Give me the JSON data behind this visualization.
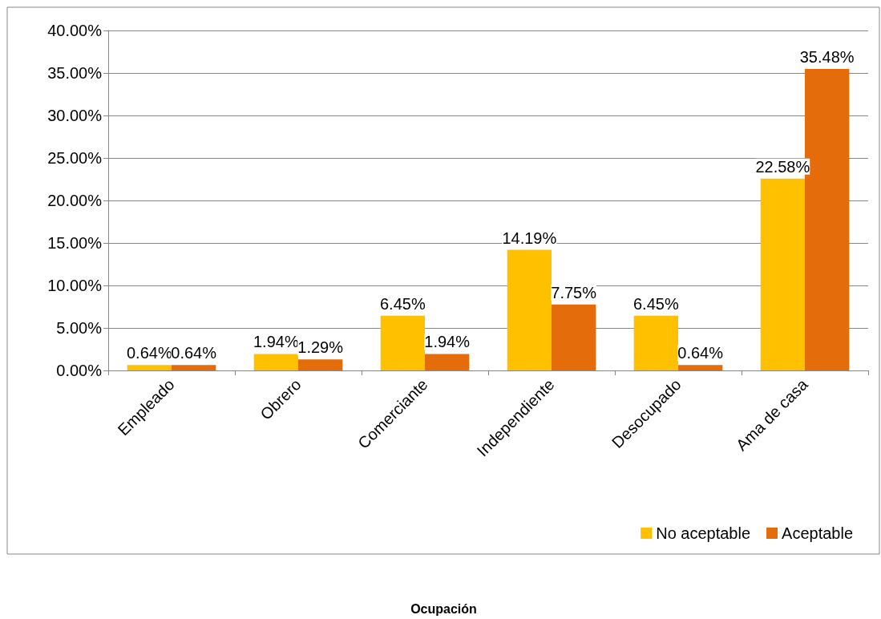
{
  "chart_data": {
    "type": "bar",
    "annotations": [
      "Ocupación"
    ],
    "categories": [
      "Empleado",
      "Obrero",
      "Comerciante",
      "Independiente",
      "Desocupado",
      "Ama de casa"
    ],
    "series": [
      {
        "name": "No aceptable",
        "color": "#ffc000",
        "values": [
          0.64,
          1.94,
          6.45,
          14.19,
          6.45,
          22.58
        ],
        "value_labels": [
          "0.64%",
          "1.94%",
          "6.45%",
          "14.19%",
          "6.45%",
          "22.58%"
        ]
      },
      {
        "name": "Aceptable",
        "color": "#e46c0a",
        "values": [
          0.64,
          1.29,
          1.94,
          7.75,
          0.64,
          35.48
        ],
        "value_labels": [
          "0.64%",
          "1.29%",
          "1.94%",
          "7.75%",
          "0.64%",
          "35.48%"
        ]
      }
    ],
    "ylim": [
      0,
      40
    ],
    "yticks": [
      {
        "value": 0,
        "label": "0.00%"
      },
      {
        "value": 5,
        "label": "5.00%"
      },
      {
        "value": 10,
        "label": "10.00%"
      },
      {
        "value": 15,
        "label": "15.00%"
      },
      {
        "value": 20,
        "label": "20.00%"
      },
      {
        "value": 25,
        "label": "25.00%"
      },
      {
        "value": 30,
        "label": "30.00%"
      },
      {
        "value": 35,
        "label": "35.00%"
      },
      {
        "value": 40,
        "label": "40.00%"
      }
    ],
    "grid": "y",
    "legend": "bottom right"
  }
}
